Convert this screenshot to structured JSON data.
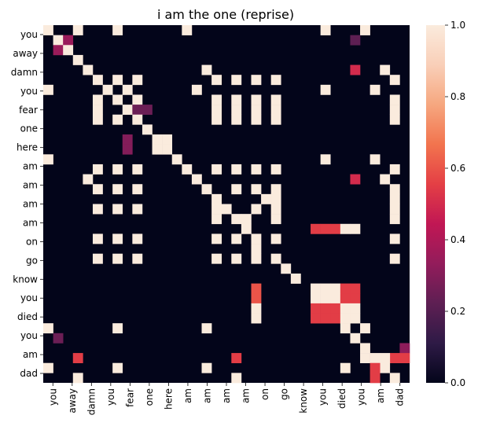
{
  "chart_data": {
    "type": "heatmap",
    "title": "i am the one (reprise)",
    "xlabel": "",
    "ylabel": "",
    "row_tick_labels": [
      "you",
      "away",
      "damn",
      "you",
      "fear",
      "one",
      "here",
      "am",
      "am",
      "am",
      "am",
      "on",
      "go",
      "know",
      "you",
      "died",
      "you",
      "am",
      "dad"
    ],
    "col_tick_labels": [
      "you",
      "away",
      "damn",
      "you",
      "fear",
      "one",
      "here",
      "am",
      "am",
      "am",
      "am",
      "on",
      "go",
      "know",
      "you",
      "died",
      "you",
      "am",
      "dad"
    ],
    "grid_rows": 36,
    "grid_cols": 37,
    "value_range": [
      0,
      1
    ],
    "colorbar_ticks": [
      "0.0",
      "0.2",
      "0.4",
      "0.6",
      "0.8",
      "1.0"
    ],
    "colormap": [
      "#03051a",
      "#2e1a46",
      "#5e1f53",
      "#931c5b",
      "#c11754",
      "#e43f45",
      "#f2744e",
      "#f6a77f",
      "#f9cfb8",
      "#faebdd"
    ],
    "cells": [
      [
        0,
        0,
        1
      ],
      [
        0,
        3,
        1
      ],
      [
        0,
        7,
        1
      ],
      [
        0,
        14,
        1
      ],
      [
        0,
        28,
        1
      ],
      [
        0,
        32,
        1
      ],
      [
        1,
        1,
        1
      ],
      [
        1,
        2,
        0.35
      ],
      [
        1,
        31,
        0.22
      ],
      [
        2,
        1,
        0.35
      ],
      [
        2,
        2,
        1
      ],
      [
        3,
        3,
        1
      ],
      [
        4,
        4,
        1
      ],
      [
        4,
        16,
        1
      ],
      [
        4,
        31,
        0.5
      ],
      [
        4,
        34,
        1
      ],
      [
        5,
        5,
        1
      ],
      [
        5,
        7,
        1
      ],
      [
        5,
        9,
        1
      ],
      [
        5,
        17,
        1
      ],
      [
        5,
        19,
        1
      ],
      [
        5,
        21,
        1
      ],
      [
        5,
        23,
        1
      ],
      [
        5,
        35,
        1
      ],
      [
        6,
        0,
        1
      ],
      [
        6,
        6,
        1
      ],
      [
        6,
        8,
        1
      ],
      [
        6,
        15,
        1
      ],
      [
        6,
        28,
        1
      ],
      [
        6,
        33,
        1
      ],
      [
        7,
        5,
        1
      ],
      [
        7,
        7,
        1
      ],
      [
        7,
        9,
        1
      ],
      [
        7,
        17,
        1
      ],
      [
        7,
        19,
        1
      ],
      [
        7,
        21,
        1
      ],
      [
        7,
        23,
        1
      ],
      [
        7,
        35,
        1
      ],
      [
        8,
        5,
        1
      ],
      [
        8,
        8,
        1
      ],
      [
        8,
        9,
        0.25
      ],
      [
        8,
        10,
        0.25
      ],
      [
        8,
        17,
        1
      ],
      [
        8,
        19,
        1
      ],
      [
        8,
        21,
        1
      ],
      [
        8,
        23,
        1
      ],
      [
        8,
        35,
        1
      ],
      [
        9,
        5,
        1
      ],
      [
        9,
        7,
        1
      ],
      [
        9,
        9,
        1
      ],
      [
        9,
        17,
        1
      ],
      [
        9,
        19,
        1
      ],
      [
        9,
        21,
        1
      ],
      [
        9,
        23,
        1
      ],
      [
        9,
        35,
        1
      ],
      [
        10,
        10,
        1
      ],
      [
        11,
        8,
        0.3
      ],
      [
        11,
        11,
        1
      ],
      [
        11,
        12,
        1
      ],
      [
        12,
        8,
        0.3
      ],
      [
        12,
        11,
        1
      ],
      [
        12,
        12,
        1
      ],
      [
        13,
        0,
        1
      ],
      [
        13,
        13,
        1
      ],
      [
        13,
        28,
        1
      ],
      [
        13,
        33,
        1
      ],
      [
        14,
        5,
        1
      ],
      [
        14,
        7,
        1
      ],
      [
        14,
        9,
        1
      ],
      [
        14,
        14,
        1
      ],
      [
        14,
        17,
        1
      ],
      [
        14,
        19,
        1
      ],
      [
        14,
        21,
        1
      ],
      [
        14,
        23,
        1
      ],
      [
        14,
        35,
        1
      ],
      [
        15,
        4,
        1
      ],
      [
        15,
        15,
        1
      ],
      [
        15,
        31,
        0.5
      ],
      [
        15,
        34,
        1
      ],
      [
        16,
        5,
        1
      ],
      [
        16,
        7,
        1
      ],
      [
        16,
        9,
        1
      ],
      [
        16,
        16,
        1
      ],
      [
        16,
        19,
        1
      ],
      [
        16,
        21,
        1
      ],
      [
        16,
        23,
        1
      ],
      [
        16,
        35,
        1
      ],
      [
        17,
        17,
        1
      ],
      [
        17,
        22,
        1
      ],
      [
        17,
        23,
        1
      ],
      [
        17,
        35,
        1
      ],
      [
        18,
        5,
        1
      ],
      [
        18,
        7,
        1
      ],
      [
        18,
        9,
        1
      ],
      [
        18,
        17,
        1
      ],
      [
        18,
        18,
        1
      ],
      [
        18,
        21,
        1
      ],
      [
        18,
        23,
        1
      ],
      [
        18,
        35,
        1
      ],
      [
        19,
        17,
        1
      ],
      [
        19,
        19,
        1
      ],
      [
        19,
        20,
        1
      ],
      [
        19,
        23,
        1
      ],
      [
        19,
        35,
        1
      ],
      [
        20,
        20,
        1
      ],
      [
        20,
        27,
        0.55
      ],
      [
        20,
        28,
        0.55
      ],
      [
        20,
        29,
        0.55
      ],
      [
        20,
        30,
        1
      ],
      [
        20,
        31,
        1
      ],
      [
        21,
        5,
        1
      ],
      [
        21,
        7,
        1
      ],
      [
        21,
        9,
        1
      ],
      [
        21,
        17,
        1
      ],
      [
        21,
        19,
        1
      ],
      [
        21,
        21,
        1
      ],
      [
        21,
        23,
        1
      ],
      [
        21,
        35,
        1
      ],
      [
        22,
        21,
        1
      ],
      [
        23,
        5,
        1
      ],
      [
        23,
        7,
        1
      ],
      [
        23,
        9,
        1
      ],
      [
        23,
        17,
        1
      ],
      [
        23,
        19,
        1
      ],
      [
        23,
        21,
        1
      ],
      [
        23,
        23,
        1
      ],
      [
        23,
        35,
        1
      ],
      [
        24,
        24,
        1
      ],
      [
        25,
        25,
        1
      ],
      [
        26,
        21,
        0.6
      ],
      [
        26,
        27,
        1
      ],
      [
        26,
        28,
        1
      ],
      [
        26,
        29,
        1
      ],
      [
        26,
        30,
        0.55
      ],
      [
        26,
        31,
        0.55
      ],
      [
        27,
        21,
        0.6
      ],
      [
        27,
        27,
        1
      ],
      [
        27,
        28,
        1
      ],
      [
        27,
        29,
        1
      ],
      [
        27,
        30,
        0.55
      ],
      [
        27,
        31,
        0.55
      ],
      [
        28,
        21,
        1
      ],
      [
        28,
        27,
        0.55
      ],
      [
        28,
        28,
        0.55
      ],
      [
        28,
        29,
        0.55
      ],
      [
        28,
        30,
        1
      ],
      [
        28,
        31,
        1
      ],
      [
        29,
        21,
        1
      ],
      [
        29,
        27,
        0.55
      ],
      [
        29,
        28,
        0.55
      ],
      [
        29,
        29,
        0.55
      ],
      [
        29,
        30,
        1
      ],
      [
        29,
        31,
        1
      ],
      [
        30,
        0,
        1
      ],
      [
        30,
        7,
        1
      ],
      [
        30,
        16,
        1
      ],
      [
        30,
        30,
        1
      ],
      [
        30,
        32,
        1
      ],
      [
        31,
        1,
        0.25
      ],
      [
        31,
        31,
        1
      ],
      [
        32,
        32,
        1
      ],
      [
        32,
        36,
        0.32
      ],
      [
        33,
        3,
        0.55
      ],
      [
        33,
        19,
        0.55
      ],
      [
        33,
        32,
        1
      ],
      [
        33,
        33,
        1
      ],
      [
        33,
        35,
        0.55
      ],
      [
        33,
        36,
        0.55
      ],
      [
        34,
        0,
        1
      ],
      [
        34,
        7,
        1
      ],
      [
        34,
        16,
        1
      ],
      [
        34,
        30,
        1
      ],
      [
        34,
        34,
        1
      ],
      [
        35,
        3,
        1
      ],
      [
        35,
        19,
        1
      ],
      [
        35,
        33,
        0.55
      ]
    ],
    "cells_extra": [
      [
        33,
        34,
        1
      ],
      [
        34,
        33,
        0.55
      ],
      [
        35,
        35,
        1
      ]
    ]
  }
}
